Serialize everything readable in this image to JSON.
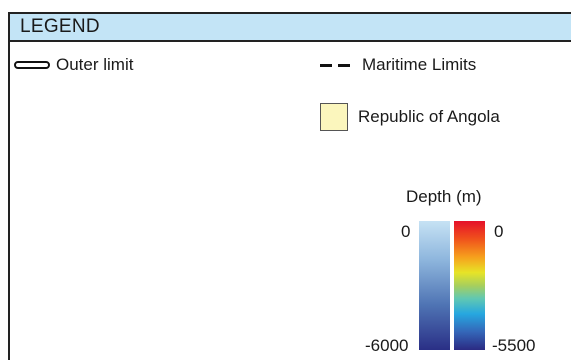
{
  "legend": {
    "title": "LEGEND",
    "outer_limit": {
      "label": "Outer limit"
    },
    "maritime_limits": {
      "label": "Maritime Limits"
    },
    "angola": {
      "label": "Republic of Angola",
      "color": "#fbf6bd"
    }
  },
  "depth_scale": {
    "title": "Depth (m)",
    "left_bar": {
      "top_label": "0",
      "bottom_label": "-6000"
    },
    "right_bar": {
      "top_label": "0",
      "bottom_label": "-5500"
    }
  },
  "colors": {
    "header_background": "#c3e4f6",
    "border": "#222222"
  }
}
